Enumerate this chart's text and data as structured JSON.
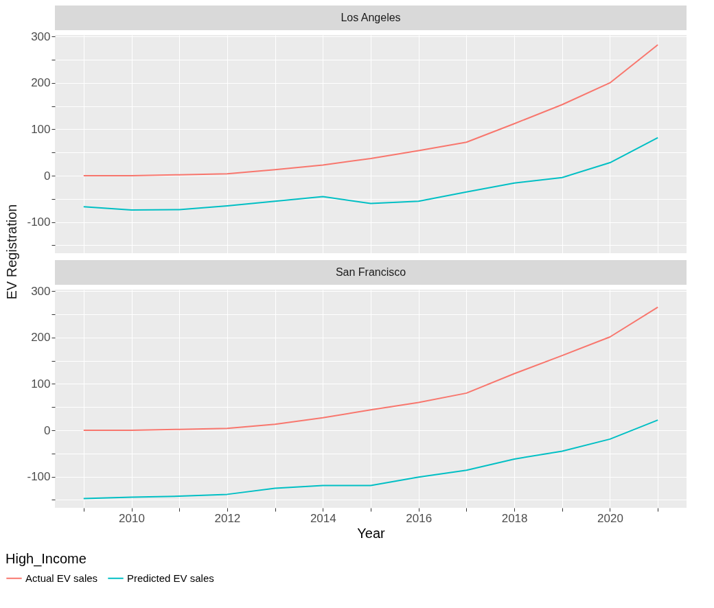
{
  "chart_data": [
    {
      "type": "line",
      "title": "Los Angeles",
      "ylabel": "EV Registration",
      "x": [
        2009,
        2010,
        2011,
        2012,
        2013,
        2014,
        2015,
        2016,
        2017,
        2018,
        2019,
        2020,
        2021
      ],
      "series": [
        {
          "name": "Actual EV sales",
          "color": "#f8766d",
          "values": [
            0,
            0,
            2,
            4,
            13,
            23,
            37,
            54,
            72,
            112,
            153,
            200,
            282
          ]
        },
        {
          "name": "Predicted EV sales",
          "color": "#00bfc4",
          "values": [
            -67,
            -74,
            -73,
            -65,
            -55,
            -45,
            -60,
            -55,
            -35,
            -16,
            -4,
            28,
            82
          ]
        }
      ],
      "xlim": [
        2008.4,
        2021.6
      ],
      "ylim": [
        -167,
        303
      ],
      "xticks": [
        {
          "value": 2009,
          "label": null
        },
        2010,
        {
          "value": 2011,
          "label": null
        },
        2012,
        {
          "value": 2013,
          "label": null
        },
        2014,
        {
          "value": 2015,
          "label": null
        },
        2016,
        {
          "value": 2017,
          "label": null
        },
        2018,
        {
          "value": 2019,
          "label": null
        },
        2020,
        {
          "value": 2021,
          "label": null
        }
      ],
      "yticks": [
        {
          "value": -150,
          "label": null
        },
        -100,
        {
          "value": -50,
          "label": null
        },
        0,
        {
          "value": 50,
          "label": null
        },
        100,
        {
          "value": 150,
          "label": null
        },
        200,
        {
          "value": 250,
          "label": null
        },
        300
      ],
      "grid": true,
      "legend": "bottom",
      "tick_labels": "y"
    },
    {
      "type": "line",
      "title": "San Francisco",
      "xlabel": "Year",
      "legend_title": "High_Income",
      "x": [
        2009,
        2010,
        2011,
        2012,
        2013,
        2014,
        2015,
        2016,
        2017,
        2018,
        2019,
        2020,
        2021
      ],
      "series": [
        {
          "name": "Actual EV sales",
          "color": "#f8766d",
          "values": [
            0,
            0,
            2,
            4,
            13,
            27,
            44,
            60,
            80,
            122,
            161,
            201,
            265
          ]
        },
        {
          "name": "Predicted EV sales",
          "color": "#00bfc4",
          "values": [
            -147,
            -144,
            -142,
            -138,
            -125,
            -119,
            -119,
            -101,
            -86,
            -62,
            -45,
            -19,
            22
          ]
        }
      ],
      "xlim": [
        2008.4,
        2021.6
      ],
      "ylim": [
        -167,
        303
      ],
      "xticks": [
        {
          "value": 2009,
          "label": null
        },
        2010,
        {
          "value": 2011,
          "label": null
        },
        2012,
        {
          "value": 2013,
          "label": null
        },
        2014,
        {
          "value": 2015,
          "label": null
        },
        2016,
        {
          "value": 2017,
          "label": null
        },
        2018,
        {
          "value": 2019,
          "label": null
        },
        2020,
        {
          "value": 2021,
          "label": null
        }
      ],
      "yticks": [
        {
          "value": -150,
          "label": null
        },
        -100,
        {
          "value": -50,
          "label": null
        },
        0,
        {
          "value": 50,
          "label": null
        },
        100,
        {
          "value": 150,
          "label": null
        },
        200,
        {
          "value": 250,
          "label": null
        },
        300
      ],
      "grid": true,
      "legend": "bottom"
    }
  ]
}
